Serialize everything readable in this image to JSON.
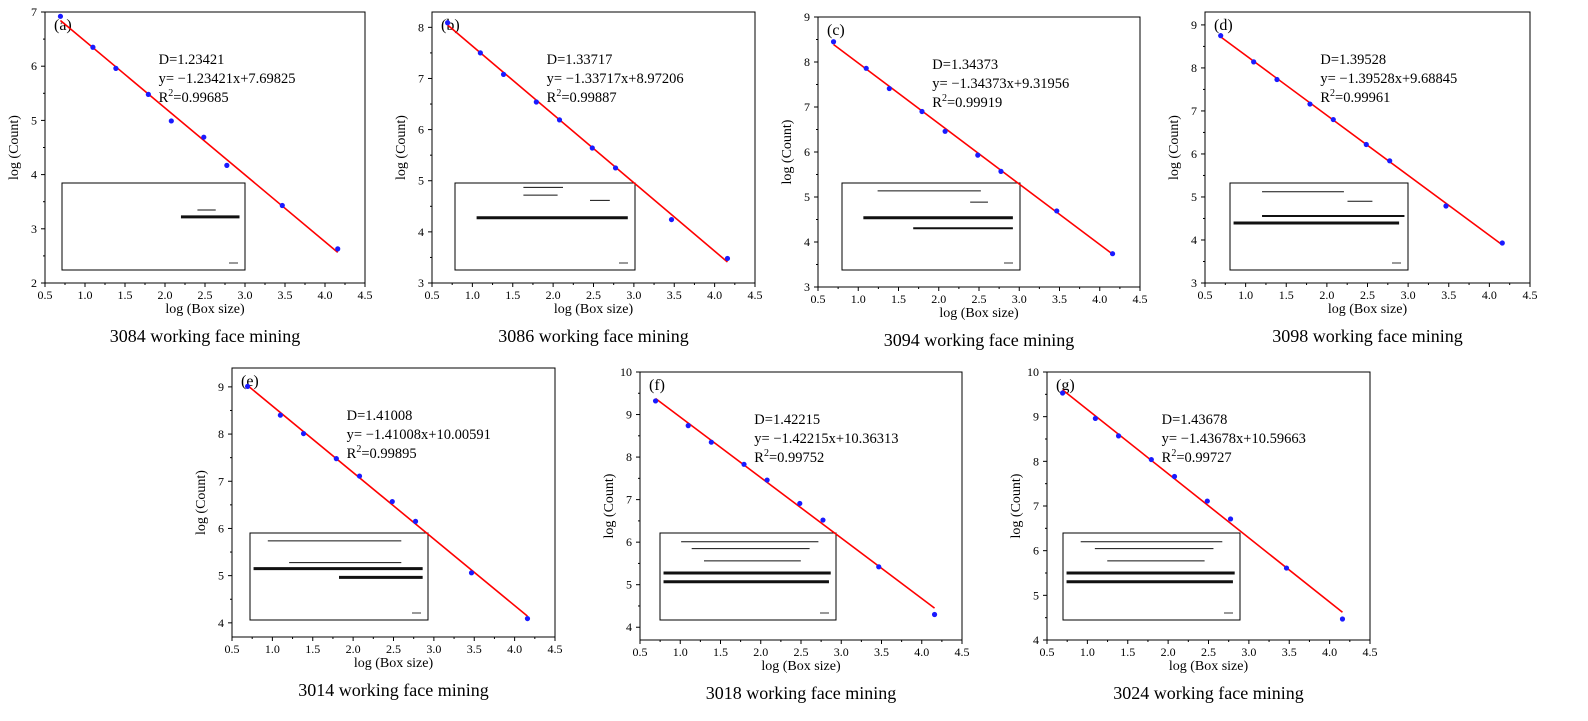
{
  "chart_data": [
    {
      "id": "a",
      "type": "scatter",
      "panel_label": "(a)",
      "caption": "3084 working face mining",
      "xlabel": "log (Box size)",
      "ylabel": "log (Count)",
      "xlim": [
        0.5,
        4.5
      ],
      "ylim": [
        2,
        7
      ],
      "xticks": [
        "0.5",
        "1.0",
        "1.5",
        "2.0",
        "2.5",
        "3.0",
        "3.5",
        "4.0",
        "4.5"
      ],
      "yticks": [
        "2",
        "3",
        "4",
        "5",
        "6",
        "7"
      ],
      "x": [
        0.693,
        1.099,
        1.386,
        1.792,
        2.079,
        2.485,
        2.773,
        3.466,
        4.159
      ],
      "y": [
        6.92,
        6.35,
        5.96,
        5.48,
        4.99,
        4.69,
        4.17,
        3.43,
        2.63
      ],
      "fit": {
        "slope": -1.23421,
        "intercept": 7.69825
      },
      "annotation": {
        "D": "D=1.23421",
        "eq": "y= −1.23421x+7.69825",
        "r2_prefix": "R",
        "r2_sup": "2",
        "r2_value": "=0.99685"
      },
      "point_color": "#1a1aff",
      "line_color": "#ff0000"
    },
    {
      "id": "b",
      "type": "scatter",
      "panel_label": "(b)",
      "caption": "3086 working face mining",
      "xlabel": "log (Box size)",
      "ylabel": "log (Count)",
      "xlim": [
        0.5,
        4.5
      ],
      "ylim": [
        3,
        8.3
      ],
      "xticks": [
        "0.5",
        "1.0",
        "1.5",
        "2.0",
        "2.5",
        "3.0",
        "3.5",
        "4.0",
        "4.5"
      ],
      "yticks": [
        "3",
        "4",
        "5",
        "6",
        "7",
        "8"
      ],
      "x": [
        0.693,
        1.099,
        1.386,
        1.792,
        2.079,
        2.485,
        2.773,
        3.466,
        4.159
      ],
      "y": [
        8.09,
        7.5,
        7.08,
        6.54,
        6.19,
        5.64,
        5.25,
        4.24,
        3.48
      ],
      "fit": {
        "slope": -1.33717,
        "intercept": 8.97206
      },
      "annotation": {
        "D": "D=1.33717",
        "eq": "y= −1.33717x+8.97206",
        "r2_prefix": "R",
        "r2_sup": "2",
        "r2_value": "=0.99887"
      },
      "point_color": "#1a1aff",
      "line_color": "#ff0000"
    },
    {
      "id": "c",
      "type": "scatter",
      "panel_label": "(c)",
      "caption": "3094 working face mining",
      "xlabel": "log (Box size)",
      "ylabel": "log (Count)",
      "xlim": [
        0.5,
        4.5
      ],
      "ylim": [
        3,
        9
      ],
      "xticks": [
        "0.5",
        "1.0",
        "1.5",
        "2.0",
        "2.5",
        "3.0",
        "3.5",
        "4.0",
        "4.5"
      ],
      "yticks": [
        "3",
        "4",
        "5",
        "6",
        "7",
        "8",
        "9"
      ],
      "x": [
        0.693,
        1.099,
        1.386,
        1.792,
        2.079,
        2.485,
        2.773,
        3.466,
        4.159
      ],
      "y": [
        8.45,
        7.86,
        7.41,
        6.9,
        6.46,
        5.93,
        5.57,
        4.69,
        3.74
      ],
      "fit": {
        "slope": -1.34373,
        "intercept": 9.31956
      },
      "annotation": {
        "D": "D=1.34373",
        "eq": "y= −1.34373x+9.31956",
        "r2_prefix": "R",
        "r2_sup": "2",
        "r2_value": "=0.99919"
      },
      "point_color": "#1a1aff",
      "line_color": "#ff0000"
    },
    {
      "id": "d",
      "type": "scatter",
      "panel_label": "(d)",
      "caption": "3098 working face mining",
      "xlabel": "log (Box size)",
      "ylabel": "log (Count)",
      "xlim": [
        0.5,
        4.5
      ],
      "ylim": [
        3,
        9.3
      ],
      "xticks": [
        "0.5",
        "1.0",
        "1.5",
        "2.0",
        "2.5",
        "3.0",
        "3.5",
        "4.0",
        "4.5"
      ],
      "yticks": [
        "3",
        "4",
        "5",
        "6",
        "7",
        "8",
        "9"
      ],
      "x": [
        0.693,
        1.099,
        1.386,
        1.792,
        2.079,
        2.485,
        2.773,
        3.466,
        4.159
      ],
      "y": [
        8.75,
        8.14,
        7.73,
        7.16,
        6.8,
        6.22,
        5.84,
        4.79,
        3.93
      ],
      "fit": {
        "slope": -1.39528,
        "intercept": 9.68845
      },
      "annotation": {
        "D": "D=1.39528",
        "eq": "y= −1.39528x+9.68845",
        "r2_prefix": "R",
        "r2_sup": "2",
        "r2_value": "=0.99961"
      },
      "point_color": "#1a1aff",
      "line_color": "#ff0000"
    },
    {
      "id": "e",
      "type": "scatter",
      "panel_label": "(e)",
      "caption": "3014 working face mining",
      "xlabel": "log (Box size)",
      "ylabel": "log (Count)",
      "xlim": [
        0.5,
        4.5
      ],
      "ylim": [
        3.7,
        9.4
      ],
      "xticks": [
        "0.5",
        "1.0",
        "1.5",
        "2.0",
        "2.5",
        "3.0",
        "3.5",
        "4.0",
        "4.5"
      ],
      "yticks": [
        "4",
        "5",
        "6",
        "7",
        "8",
        "9"
      ],
      "x": [
        0.693,
        1.099,
        1.386,
        1.792,
        2.079,
        2.485,
        2.773,
        3.466,
        4.159
      ],
      "y": [
        9.01,
        8.4,
        8.01,
        7.48,
        7.11,
        6.57,
        6.15,
        5.06,
        4.09
      ],
      "fit": {
        "slope": -1.41008,
        "intercept": 10.00591
      },
      "annotation": {
        "D": "D=1.41008",
        "eq": "y= −1.41008x+10.00591",
        "r2_prefix": "R",
        "r2_sup": "2",
        "r2_value": "=0.99895"
      },
      "point_color": "#1a1aff",
      "line_color": "#ff0000"
    },
    {
      "id": "f",
      "type": "scatter",
      "panel_label": "(f)",
      "caption": "3018 working face mining",
      "xlabel": "log (Box size)",
      "ylabel": "log (Count)",
      "xlim": [
        0.5,
        4.5
      ],
      "ylim": [
        3.7,
        10
      ],
      "xticks": [
        "0.5",
        "1.0",
        "1.5",
        "2.0",
        "2.5",
        "3.0",
        "3.5",
        "4.0",
        "4.5"
      ],
      "yticks": [
        "4",
        "5",
        "6",
        "7",
        "8",
        "9",
        "10"
      ],
      "x": [
        0.693,
        1.099,
        1.386,
        1.792,
        2.079,
        2.485,
        2.773,
        3.466,
        4.159
      ],
      "y": [
        9.32,
        8.74,
        8.35,
        7.83,
        7.46,
        6.91,
        6.52,
        5.42,
        4.3
      ],
      "fit": {
        "slope": -1.42215,
        "intercept": 10.36313
      },
      "annotation": {
        "D": "D=1.42215",
        "eq": "y= −1.42215x+10.36313",
        "r2_prefix": "R",
        "r2_sup": "2",
        "r2_value": "=0.99752"
      },
      "point_color": "#1a1aff",
      "line_color": "#ff0000"
    },
    {
      "id": "g",
      "type": "scatter",
      "panel_label": "(g)",
      "caption": "3024 working face mining",
      "xlabel": "log (Box size)",
      "ylabel": "log (Count)",
      "xlim": [
        0.5,
        4.5
      ],
      "ylim": [
        4,
        10
      ],
      "xticks": [
        "0.5",
        "1.0",
        "1.5",
        "2.0",
        "2.5",
        "3.0",
        "3.5",
        "4.0",
        "4.5"
      ],
      "yticks": [
        "4",
        "5",
        "6",
        "7",
        "8",
        "9",
        "10"
      ],
      "x": [
        0.693,
        1.099,
        1.386,
        1.792,
        2.079,
        2.485,
        2.773,
        3.466,
        4.159
      ],
      "y": [
        9.53,
        8.96,
        8.57,
        8.04,
        7.66,
        7.11,
        6.71,
        5.61,
        4.47
      ],
      "fit": {
        "slope": -1.43678,
        "intercept": 10.59663
      },
      "annotation": {
        "D": "D=1.43678",
        "eq": "y= −1.43678x+10.59663",
        "r2_prefix": "R",
        "r2_sup": "2",
        "r2_value": "=0.99727"
      },
      "point_color": "#1a1aff",
      "line_color": "#ff0000"
    }
  ]
}
